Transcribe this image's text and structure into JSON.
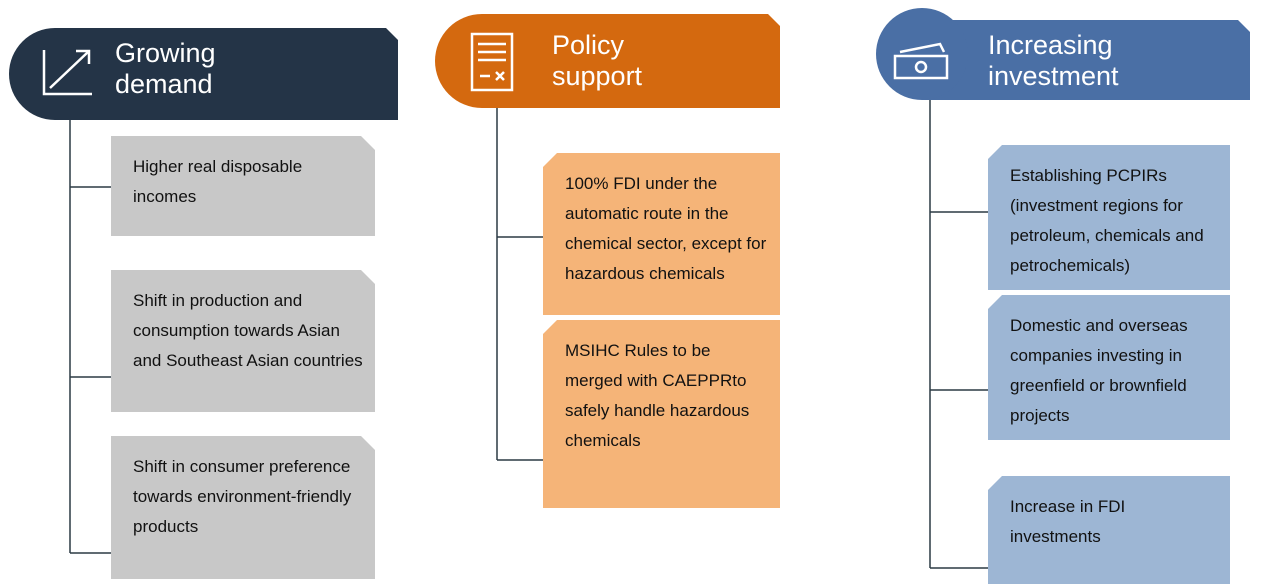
{
  "columns": [
    {
      "title": "Growing demand",
      "items": [
        "Higher real disposable incomes",
        "Shift in production and consumption towards Asian and Southeast Asian countries",
        "Shift in consumer preference towards environment-friendly products"
      ]
    },
    {
      "title": "Policy support",
      "items": [
        "100% FDI under the automatic route in the chemical sector, except for hazardous chemicals",
        "MSIHC Rules to be merged with CAEPPRto safely handle hazardous chemicals"
      ]
    },
    {
      "title": "Increasing investment",
      "items": [
        "Establishing PCPIRs (investment regions for petroleum, chemicals and petrochemicals)",
        "Domestic and overseas companies investing in greenfield or brownfield projects",
        "Increase in FDI investments"
      ]
    }
  ]
}
